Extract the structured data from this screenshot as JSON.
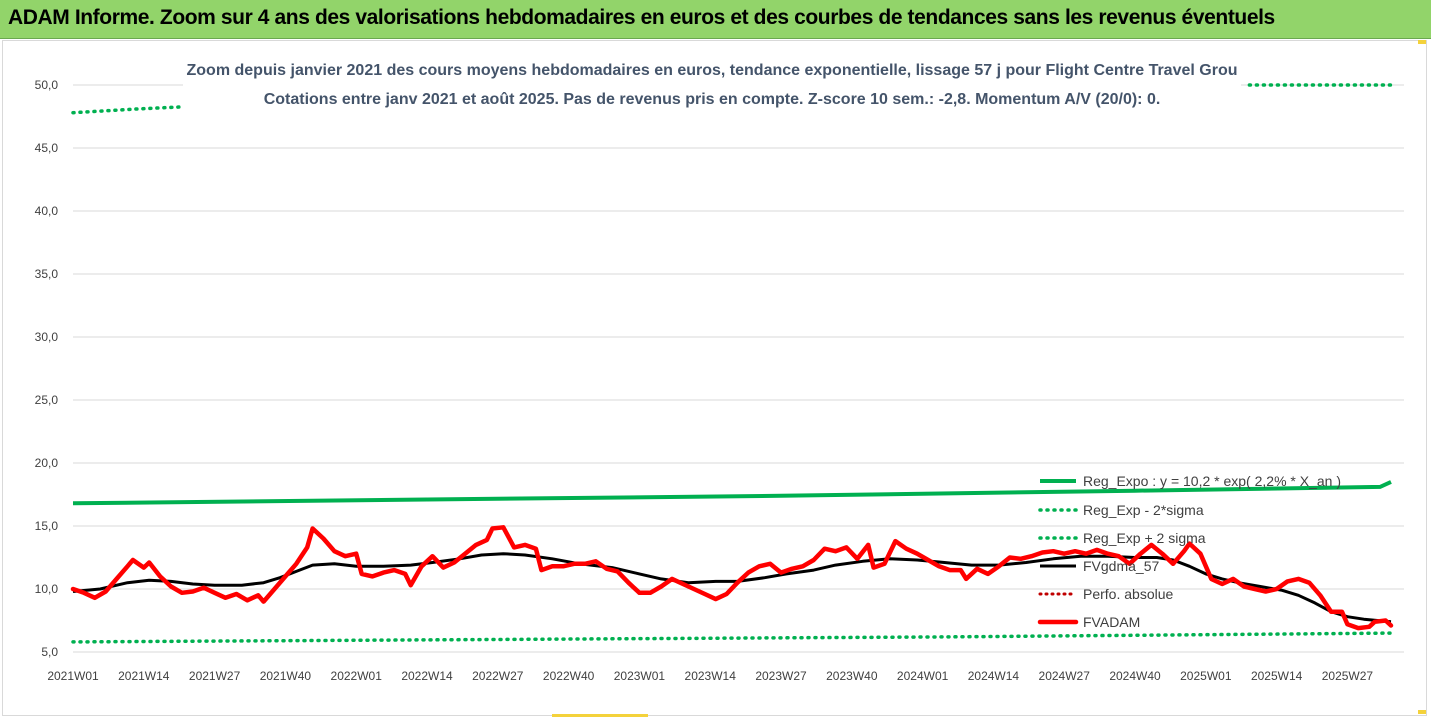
{
  "header": {
    "title": "ADAM Informe. Zoom sur 4 ans des valorisations hebdomadaires en euros et des courbes de tendances sans les revenus éventuels"
  },
  "colors": {
    "header_bg": "#92d46a",
    "reg_expo": "#00b050",
    "sigma": "#00b050",
    "smooth": "#000000",
    "perfo": "#c00000",
    "price": "#ff0000",
    "title": "#44546a"
  },
  "chart_data": {
    "type": "line",
    "title": "Zoom depuis janvier 2021 des cours moyens hebdomadaires en euros, tendance exponentielle, lissage 57 j pour Flight Centre Travel Grou",
    "subtitle": "Cotations entre janv 2021 et août 2025. Pas de revenus pris en compte. Z-score 10 sem.: -2,8. Momentum A/V (20/0): 0.",
    "xlabel": "",
    "ylabel": "",
    "ylim": [
      5,
      50
    ],
    "yticks": [
      "5,0",
      "10,0",
      "15,0",
      "20,0",
      "25,0",
      "30,0",
      "35,0",
      "40,0",
      "45,0",
      "50,0"
    ],
    "xticks": [
      "2021W01",
      "2021W14",
      "2021W27",
      "2021W40",
      "2022W01",
      "2022W14",
      "2022W27",
      "2022W40",
      "2023W01",
      "2023W14",
      "2023W27",
      "2023W40",
      "2024W01",
      "2024W14",
      "2024W27",
      "2024W40",
      "2025W01",
      "2025W14",
      "2025W27"
    ],
    "grid": true,
    "legend_position": "bottom-right",
    "series": [
      {
        "name": "Reg_Expo : y = 10,2 * exp( 2,2% * X_an )",
        "style": "solid-green",
        "points": [
          [
            0,
            16.8
          ],
          [
            65,
            17.1
          ],
          [
            130,
            17.4
          ],
          [
            195,
            17.8
          ],
          [
            240,
            18.1
          ],
          [
            242,
            18.5
          ]
        ]
      },
      {
        "name": "Reg_Exp - 2*sigma",
        "style": "dotted-green",
        "points": [
          [
            0,
            5.8
          ],
          [
            80,
            6.0
          ],
          [
            160,
            6.2
          ],
          [
            242,
            6.5
          ]
        ]
      },
      {
        "name": "Reg_Exp + 2 sigma",
        "style": "dotted-green",
        "points": [
          [
            0,
            47.8
          ],
          [
            12,
            48.1
          ],
          [
            22,
            48.3
          ]
        ],
        "points2": [
          [
            216,
            50.0
          ],
          [
            242,
            50.0
          ]
        ]
      },
      {
        "name": "FVgdma_57",
        "style": "solid-black",
        "points": [
          [
            0,
            9.8
          ],
          [
            5,
            10.0
          ],
          [
            10,
            10.5
          ],
          [
            14,
            10.7
          ],
          [
            18,
            10.6
          ],
          [
            22,
            10.4
          ],
          [
            26,
            10.3
          ],
          [
            31,
            10.3
          ],
          [
            35,
            10.5
          ],
          [
            38,
            10.9
          ],
          [
            41,
            11.4
          ],
          [
            44,
            11.9
          ],
          [
            48,
            12.0
          ],
          [
            52,
            11.8
          ],
          [
            57,
            11.8
          ],
          [
            62,
            11.9
          ],
          [
            66,
            12.1
          ],
          [
            71,
            12.4
          ],
          [
            75,
            12.7
          ],
          [
            79,
            12.8
          ],
          [
            83,
            12.7
          ],
          [
            88,
            12.4
          ],
          [
            93,
            12.0
          ],
          [
            99,
            11.7
          ],
          [
            104,
            11.2
          ],
          [
            108,
            10.8
          ],
          [
            113,
            10.5
          ],
          [
            118,
            10.6
          ],
          [
            122,
            10.6
          ],
          [
            127,
            10.9
          ],
          [
            131,
            11.2
          ],
          [
            136,
            11.5
          ],
          [
            140,
            11.9
          ],
          [
            145,
            12.2
          ],
          [
            150,
            12.4
          ],
          [
            155,
            12.3
          ],
          [
            160,
            12.1
          ],
          [
            165,
            11.9
          ],
          [
            170,
            11.9
          ],
          [
            175,
            12.1
          ],
          [
            180,
            12.4
          ],
          [
            185,
            12.6
          ],
          [
            190,
            12.6
          ],
          [
            195,
            12.5
          ],
          [
            199,
            12.5
          ],
          [
            202,
            12.3
          ],
          [
            205,
            11.8
          ],
          [
            208,
            11.2
          ],
          [
            211,
            10.8
          ],
          [
            214,
            10.5
          ],
          [
            218,
            10.2
          ],
          [
            222,
            9.9
          ],
          [
            225,
            9.5
          ],
          [
            228,
            8.9
          ],
          [
            231,
            8.2
          ],
          [
            234,
            7.8
          ],
          [
            237,
            7.6
          ],
          [
            242,
            7.4
          ]
        ]
      },
      {
        "name": "Perfo. absolue",
        "style": "dotted-red",
        "points": []
      },
      {
        "name": "FVADAM",
        "style": "thick-red",
        "points": [
          [
            0,
            10.0
          ],
          [
            2,
            9.7
          ],
          [
            4,
            9.3
          ],
          [
            6,
            9.8
          ],
          [
            8,
            10.8
          ],
          [
            10,
            11.8
          ],
          [
            11,
            12.3
          ],
          [
            13,
            11.7
          ],
          [
            14,
            12.1
          ],
          [
            16,
            11.0
          ],
          [
            18,
            10.2
          ],
          [
            20,
            9.7
          ],
          [
            22,
            9.8
          ],
          [
            24,
            10.1
          ],
          [
            26,
            9.7
          ],
          [
            28,
            9.3
          ],
          [
            30,
            9.6
          ],
          [
            32,
            9.1
          ],
          [
            34,
            9.5
          ],
          [
            35,
            9.0
          ],
          [
            37,
            10.0
          ],
          [
            39,
            11.0
          ],
          [
            41,
            12.0
          ],
          [
            43,
            13.3
          ],
          [
            44,
            14.8
          ],
          [
            46,
            14.0
          ],
          [
            48,
            13.0
          ],
          [
            50,
            12.6
          ],
          [
            52,
            12.8
          ],
          [
            53,
            11.2
          ],
          [
            55,
            11.0
          ],
          [
            57,
            11.3
          ],
          [
            59,
            11.5
          ],
          [
            61,
            11.2
          ],
          [
            62,
            10.3
          ],
          [
            64,
            11.8
          ],
          [
            66,
            12.6
          ],
          [
            68,
            11.7
          ],
          [
            70,
            12.1
          ],
          [
            72,
            12.8
          ],
          [
            74,
            13.5
          ],
          [
            76,
            13.9
          ],
          [
            77,
            14.8
          ],
          [
            79,
            14.9
          ],
          [
            81,
            13.3
          ],
          [
            83,
            13.5
          ],
          [
            85,
            13.2
          ],
          [
            86,
            11.5
          ],
          [
            88,
            11.8
          ],
          [
            90,
            11.8
          ],
          [
            92,
            12.0
          ],
          [
            94,
            12.0
          ],
          [
            96,
            12.2
          ],
          [
            98,
            11.6
          ],
          [
            100,
            11.4
          ],
          [
            102,
            10.5
          ],
          [
            104,
            9.7
          ],
          [
            106,
            9.7
          ],
          [
            108,
            10.2
          ],
          [
            110,
            10.8
          ],
          [
            112,
            10.4
          ],
          [
            114,
            10.0
          ],
          [
            116,
            9.6
          ],
          [
            118,
            9.2
          ],
          [
            120,
            9.6
          ],
          [
            122,
            10.5
          ],
          [
            124,
            11.3
          ],
          [
            126,
            11.8
          ],
          [
            128,
            12.0
          ],
          [
            130,
            11.3
          ],
          [
            132,
            11.6
          ],
          [
            134,
            11.8
          ],
          [
            136,
            12.3
          ],
          [
            138,
            13.2
          ],
          [
            140,
            13.0
          ],
          [
            142,
            13.3
          ],
          [
            144,
            12.4
          ],
          [
            146,
            13.5
          ],
          [
            147,
            11.7
          ],
          [
            149,
            12.0
          ],
          [
            151,
            13.8
          ],
          [
            153,
            13.2
          ],
          [
            155,
            12.8
          ],
          [
            157,
            12.3
          ],
          [
            159,
            11.8
          ],
          [
            161,
            11.5
          ],
          [
            163,
            11.5
          ],
          [
            164,
            10.8
          ],
          [
            166,
            11.6
          ],
          [
            168,
            11.2
          ],
          [
            170,
            11.8
          ],
          [
            172,
            12.5
          ],
          [
            174,
            12.4
          ],
          [
            176,
            12.6
          ],
          [
            178,
            12.9
          ],
          [
            180,
            13.0
          ],
          [
            182,
            12.8
          ],
          [
            184,
            13.0
          ],
          [
            186,
            12.8
          ],
          [
            188,
            13.1
          ],
          [
            190,
            12.8
          ],
          [
            192,
            12.6
          ],
          [
            194,
            12.0
          ],
          [
            196,
            12.8
          ],
          [
            198,
            13.5
          ],
          [
            200,
            12.8
          ],
          [
            202,
            12.0
          ],
          [
            204,
            13.0
          ],
          [
            205,
            13.6
          ],
          [
            207,
            12.8
          ],
          [
            209,
            10.8
          ],
          [
            211,
            10.4
          ],
          [
            213,
            10.8
          ],
          [
            215,
            10.2
          ],
          [
            217,
            10.0
          ],
          [
            219,
            9.8
          ],
          [
            221,
            10.0
          ],
          [
            223,
            10.6
          ],
          [
            225,
            10.8
          ],
          [
            227,
            10.5
          ],
          [
            229,
            9.5
          ],
          [
            231,
            8.2
          ],
          [
            233,
            8.2
          ],
          [
            234,
            7.2
          ],
          [
            236,
            6.9
          ],
          [
            238,
            7.0
          ],
          [
            239,
            7.4
          ],
          [
            241,
            7.5
          ],
          [
            242,
            7.1
          ]
        ]
      }
    ]
  }
}
